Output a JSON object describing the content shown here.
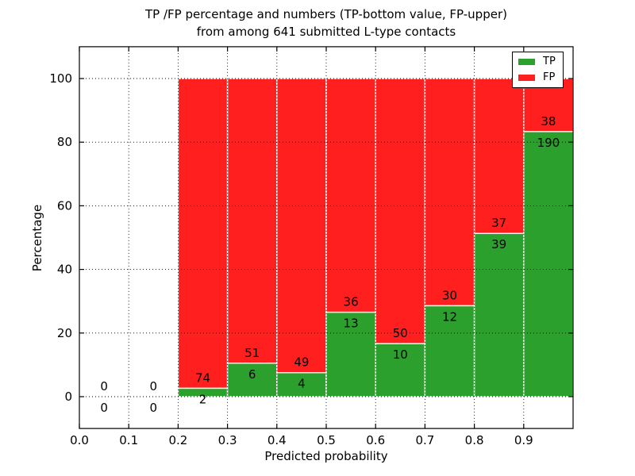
{
  "chart_data": {
    "type": "bar",
    "stacked": true,
    "title_line1": "TP /FP percentage and numbers (TP-bottom value, FP-upper)",
    "title_line2": "from among 641 submitted L-type contacts",
    "xlabel": "Predicted probability",
    "ylabel": "Percentage",
    "x_ticks": [
      {
        "value": 0.0,
        "label": "0.0"
      },
      {
        "value": 0.1,
        "label": "0.1"
      },
      {
        "value": 0.2,
        "label": "0.2"
      },
      {
        "value": 0.3,
        "label": "0.3"
      },
      {
        "value": 0.4,
        "label": "0.4"
      },
      {
        "value": 0.5,
        "label": "0.5"
      },
      {
        "value": 0.6,
        "label": "0.6"
      },
      {
        "value": 0.7,
        "label": "0.7"
      },
      {
        "value": 0.8,
        "label": "0.8"
      },
      {
        "value": 0.9,
        "label": "0.9"
      }
    ],
    "y_ticks": [
      {
        "value": 0,
        "label": "0"
      },
      {
        "value": 20,
        "label": "20"
      },
      {
        "value": 40,
        "label": "40"
      },
      {
        "value": 60,
        "label": "60"
      },
      {
        "value": 80,
        "label": "80"
      },
      {
        "value": 100,
        "label": "100"
      }
    ],
    "xlim": [
      0.0,
      1.0
    ],
    "ylim": [
      -10,
      110
    ],
    "grid": "dotted",
    "colors": {
      "tp": "#2ca02c",
      "fp": "#ff1f1f",
      "grid": "#000000",
      "text": "#000000",
      "background": "#ffffff"
    },
    "legend": {
      "position": "upper-right",
      "items": [
        {
          "label": "TP",
          "series": "tp"
        },
        {
          "label": "FP",
          "series": "fp"
        }
      ]
    },
    "bins": [
      {
        "x0": 0.0,
        "x1": 0.1,
        "tp_count": 0,
        "fp_count": 0,
        "tp_pct": null,
        "fp_pct": null
      },
      {
        "x0": 0.1,
        "x1": 0.2,
        "tp_count": 0,
        "fp_count": 0,
        "tp_pct": null,
        "fp_pct": null
      },
      {
        "x0": 0.2,
        "x1": 0.3,
        "tp_count": 2,
        "fp_count": 74,
        "tp_pct": 2.63,
        "fp_pct": 97.37
      },
      {
        "x0": 0.3,
        "x1": 0.4,
        "tp_count": 6,
        "fp_count": 51,
        "tp_pct": 10.53,
        "fp_pct": 89.47
      },
      {
        "x0": 0.4,
        "x1": 0.5,
        "tp_count": 4,
        "fp_count": 49,
        "tp_pct": 7.55,
        "fp_pct": 92.45
      },
      {
        "x0": 0.5,
        "x1": 0.6,
        "tp_count": 13,
        "fp_count": 36,
        "tp_pct": 26.53,
        "fp_pct": 73.47
      },
      {
        "x0": 0.6,
        "x1": 0.7,
        "tp_count": 10,
        "fp_count": 50,
        "tp_pct": 16.67,
        "fp_pct": 83.33
      },
      {
        "x0": 0.7,
        "x1": 0.8,
        "tp_count": 12,
        "fp_count": 30,
        "tp_pct": 28.57,
        "fp_pct": 71.43
      },
      {
        "x0": 0.8,
        "x1": 0.9,
        "tp_count": 39,
        "fp_count": 37,
        "tp_pct": 51.32,
        "fp_pct": 48.68
      },
      {
        "x0": 0.9,
        "x1": 1.0,
        "tp_count": 190,
        "fp_count": 38,
        "tp_pct": 83.33,
        "fp_pct": 16.67
      }
    ]
  }
}
